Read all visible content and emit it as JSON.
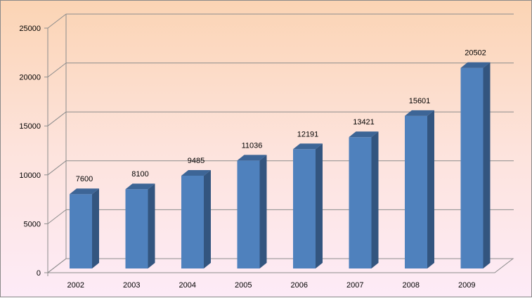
{
  "chart_data": {
    "type": "bar",
    "style": "3d-column",
    "categories": [
      "2002",
      "2003",
      "2004",
      "2005",
      "2006",
      "2007",
      "2008",
      "2009"
    ],
    "values": [
      7600,
      8100,
      9485,
      11036,
      12191,
      13421,
      15601,
      20502
    ],
    "data_labels": [
      "7600",
      "8100",
      "9485",
      "11036",
      "12191",
      "13421",
      "15601",
      "20502"
    ],
    "yticks": [
      "0",
      "5000",
      "10000",
      "15000",
      "20000",
      "25000"
    ],
    "ylim": [
      0,
      25000
    ],
    "grid": true,
    "legend": "none",
    "title": "",
    "xlabel": "",
    "ylabel": "",
    "colors": {
      "bar_front": "#4f81bd",
      "bar_side": "#33557f",
      "bar_top": "#3d6596",
      "grid": "#8c8c8c",
      "background_top": "#fbd4b4",
      "background_bottom": "#fdebf7"
    }
  }
}
